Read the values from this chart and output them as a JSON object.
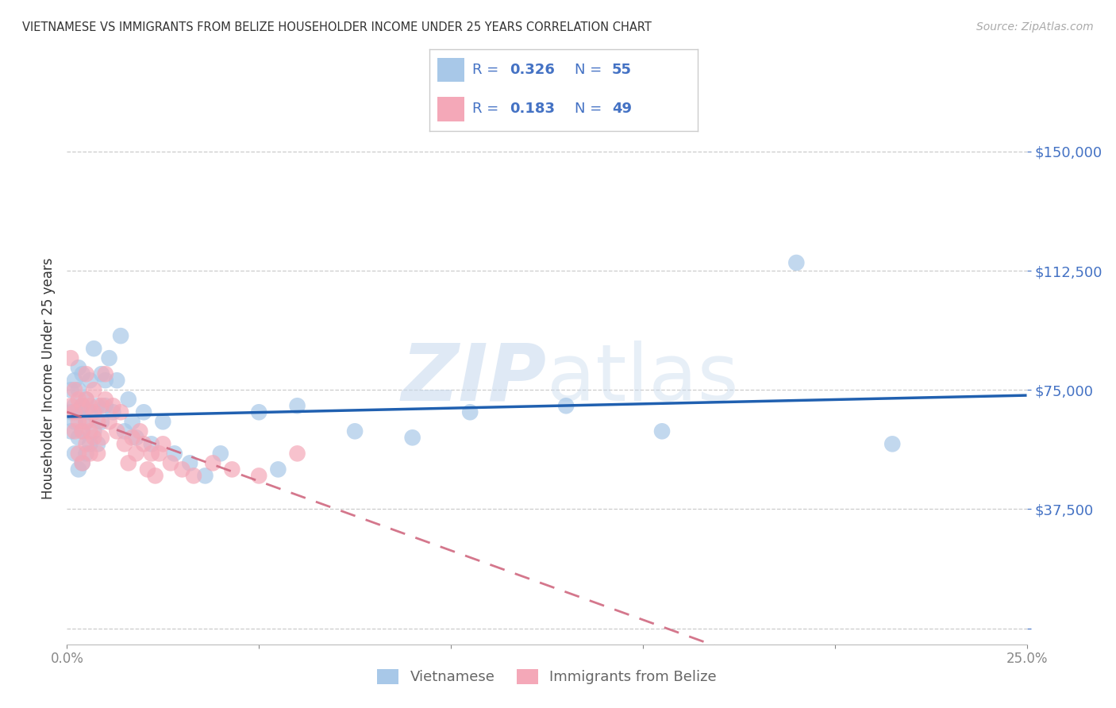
{
  "title": "VIETNAMESE VS IMMIGRANTS FROM BELIZE HOUSEHOLDER INCOME UNDER 25 YEARS CORRELATION CHART",
  "source": "Source: ZipAtlas.com",
  "ylabel": "Householder Income Under 25 years",
  "xlim": [
    0.0,
    0.25
  ],
  "ylim": [
    -5000,
    162000
  ],
  "ytick_vals": [
    0,
    37500,
    75000,
    112500,
    150000
  ],
  "ytick_labels": [
    "",
    "$37,500",
    "$75,000",
    "$112,500",
    "$150,000"
  ],
  "xtick_vals": [
    0.0,
    0.05,
    0.1,
    0.15,
    0.2,
    0.25
  ],
  "xtick_labels": [
    "0.0%",
    "",
    "",
    "",
    "",
    "25.0%"
  ],
  "r_viet": 0.326,
  "n_viet": 55,
  "r_belize": 0.183,
  "n_belize": 49,
  "color_viet": "#a8c8e8",
  "color_belize": "#f4a8b8",
  "line_viet": "#2060b0",
  "line_belize": "#d06880",
  "watermark_zip": "ZIP",
  "watermark_atlas": "atlas",
  "viet_x": [
    0.001,
    0.001,
    0.001,
    0.002,
    0.002,
    0.002,
    0.002,
    0.003,
    0.003,
    0.003,
    0.003,
    0.003,
    0.004,
    0.004,
    0.004,
    0.004,
    0.005,
    0.005,
    0.005,
    0.006,
    0.006,
    0.006,
    0.007,
    0.007,
    0.008,
    0.008,
    0.009,
    0.009,
    0.01,
    0.01,
    0.011,
    0.012,
    0.013,
    0.014,
    0.015,
    0.016,
    0.017,
    0.018,
    0.02,
    0.022,
    0.025,
    0.028,
    0.032,
    0.036,
    0.04,
    0.05,
    0.055,
    0.06,
    0.075,
    0.09,
    0.105,
    0.13,
    0.155,
    0.19,
    0.215
  ],
  "viet_y": [
    62000,
    68000,
    75000,
    55000,
    65000,
    70000,
    78000,
    50000,
    60000,
    68000,
    75000,
    82000,
    52000,
    62000,
    70000,
    80000,
    55000,
    65000,
    72000,
    58000,
    68000,
    78000,
    62000,
    88000,
    58000,
    70000,
    65000,
    80000,
    70000,
    78000,
    85000,
    68000,
    78000,
    92000,
    62000,
    72000,
    65000,
    60000,
    68000,
    58000,
    65000,
    55000,
    52000,
    48000,
    55000,
    68000,
    50000,
    70000,
    62000,
    60000,
    68000,
    70000,
    62000,
    115000,
    58000
  ],
  "belize_x": [
    0.001,
    0.001,
    0.002,
    0.002,
    0.002,
    0.003,
    0.003,
    0.003,
    0.004,
    0.004,
    0.004,
    0.005,
    0.005,
    0.005,
    0.005,
    0.006,
    0.006,
    0.006,
    0.007,
    0.007,
    0.007,
    0.008,
    0.008,
    0.009,
    0.009,
    0.01,
    0.01,
    0.011,
    0.012,
    0.013,
    0.014,
    0.015,
    0.016,
    0.017,
    0.018,
    0.019,
    0.02,
    0.021,
    0.022,
    0.023,
    0.024,
    0.025,
    0.027,
    0.03,
    0.033,
    0.038,
    0.043,
    0.05,
    0.06
  ],
  "belize_y": [
    70000,
    85000,
    62000,
    68000,
    75000,
    55000,
    65000,
    72000,
    52000,
    62000,
    70000,
    58000,
    65000,
    72000,
    80000,
    55000,
    62000,
    70000,
    60000,
    68000,
    75000,
    55000,
    65000,
    60000,
    70000,
    72000,
    80000,
    65000,
    70000,
    62000,
    68000,
    58000,
    52000,
    60000,
    55000,
    62000,
    58000,
    50000,
    55000,
    48000,
    55000,
    58000,
    52000,
    50000,
    48000,
    52000,
    50000,
    48000,
    55000
  ]
}
